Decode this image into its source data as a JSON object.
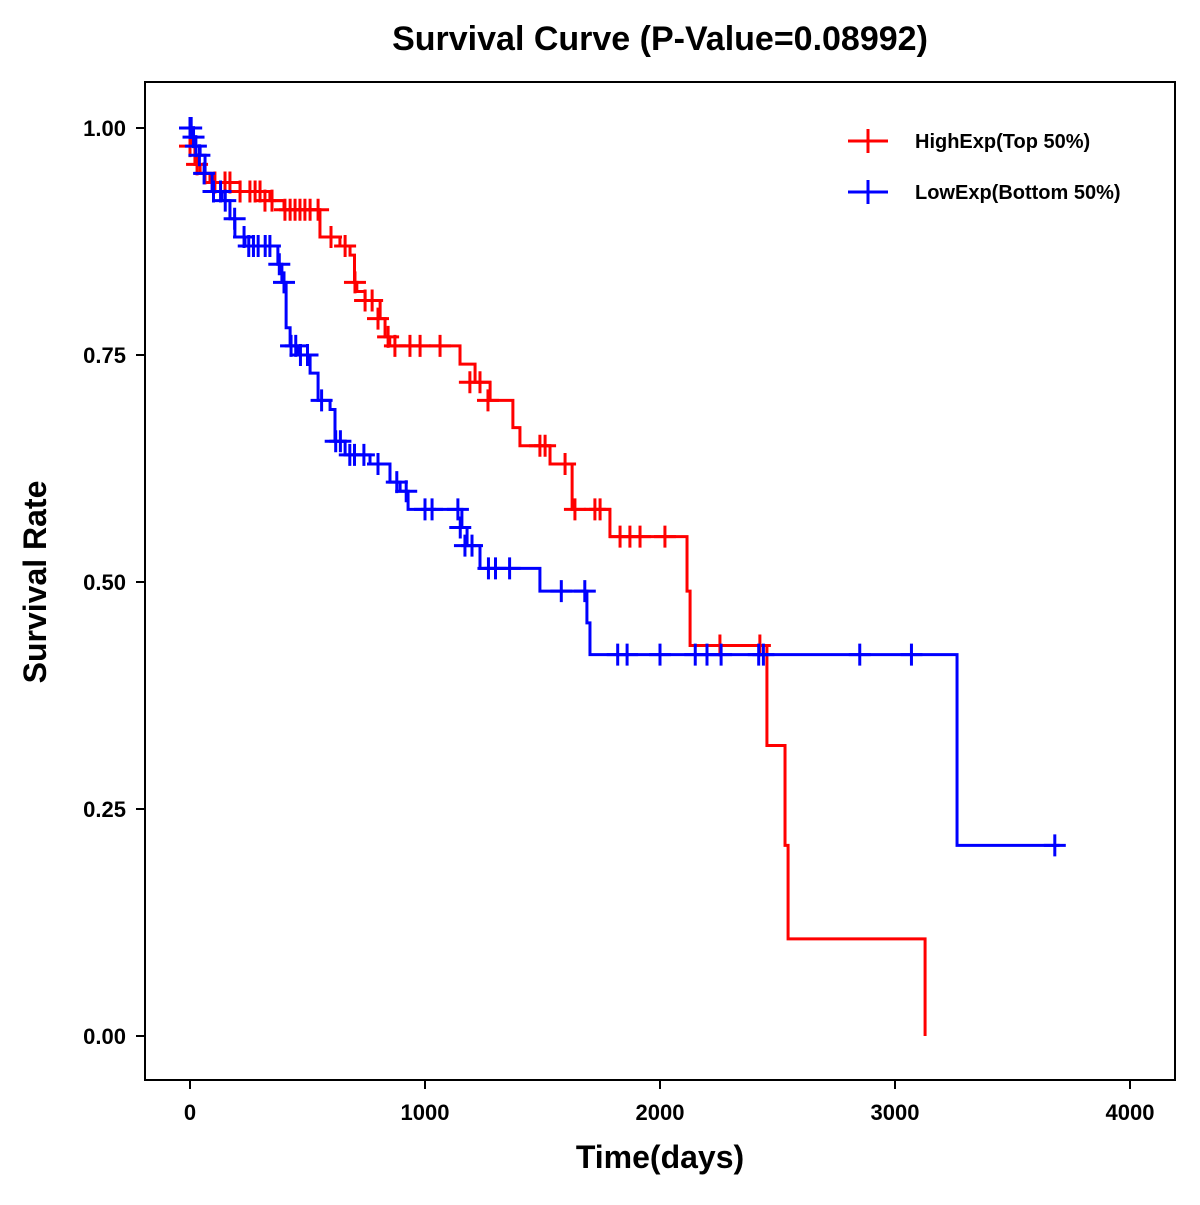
{
  "chart_data": {
    "type": "line",
    "subtype": "kaplan-meier step",
    "title": "Survival Curve (P-Value=0.08992)",
    "xlabel": "Time(days)",
    "ylabel": "Survival Rate",
    "xlim": [
      -200,
      4200
    ],
    "ylim": [
      -0.05,
      1.05
    ],
    "xticks": [
      0,
      1000,
      2000,
      3000,
      4000
    ],
    "xtick_labels": [
      "0",
      "1000",
      "2000",
      "3000",
      "4000"
    ],
    "yticks": [
      0,
      0.25,
      0.5,
      0.75,
      1.0
    ],
    "ytick_labels": [
      "0.00",
      "0.25",
      "0.50",
      "0.75",
      "1.00"
    ],
    "grid": false,
    "legend_position": "top-right",
    "series": [
      {
        "name": "HighExp(Top 50%)",
        "color": "#ff0000",
        "steps": [
          [
            0,
            1.0
          ],
          [
            5,
            0.98
          ],
          [
            21,
            0.96
          ],
          [
            43,
            0.95
          ],
          [
            85,
            0.94
          ],
          [
            213,
            0.93
          ],
          [
            340,
            0.92
          ],
          [
            400,
            0.91
          ],
          [
            553,
            0.88
          ],
          [
            638,
            0.87
          ],
          [
            681,
            0.86
          ],
          [
            700,
            0.83
          ],
          [
            710,
            0.82
          ],
          [
            745,
            0.81
          ],
          [
            809,
            0.79
          ],
          [
            830,
            0.77
          ],
          [
            850,
            0.76
          ],
          [
            1149,
            0.74
          ],
          [
            1213,
            0.72
          ],
          [
            1277,
            0.7
          ],
          [
            1374,
            0.67
          ],
          [
            1404,
            0.65
          ],
          [
            1532,
            0.63
          ],
          [
            1626,
            0.58
          ],
          [
            1787,
            0.55
          ],
          [
            2115,
            0.49
          ],
          [
            2128,
            0.43
          ],
          [
            2455,
            0.32
          ],
          [
            2532,
            0.21
          ],
          [
            2545,
            0.107
          ],
          [
            3128,
            0.0
          ]
        ],
        "censored": [
          [
            0,
            0.98
          ],
          [
            30,
            0.96
          ],
          [
            64,
            0.95
          ],
          [
            106,
            0.94
          ],
          [
            149,
            0.94
          ],
          [
            170,
            0.94
          ],
          [
            213,
            0.93
          ],
          [
            255,
            0.93
          ],
          [
            277,
            0.93
          ],
          [
            298,
            0.93
          ],
          [
            319,
            0.92
          ],
          [
            349,
            0.92
          ],
          [
            404,
            0.91
          ],
          [
            426,
            0.91
          ],
          [
            447,
            0.91
          ],
          [
            468,
            0.91
          ],
          [
            489,
            0.91
          ],
          [
            511,
            0.91
          ],
          [
            545,
            0.91
          ],
          [
            600,
            0.88
          ],
          [
            660,
            0.87
          ],
          [
            702,
            0.83
          ],
          [
            745,
            0.81
          ],
          [
            775,
            0.81
          ],
          [
            800,
            0.79
          ],
          [
            843,
            0.77
          ],
          [
            872,
            0.76
          ],
          [
            936,
            0.76
          ],
          [
            979,
            0.76
          ],
          [
            1064,
            0.76
          ],
          [
            1191,
            0.72
          ],
          [
            1234,
            0.72
          ],
          [
            1268,
            0.7
          ],
          [
            1489,
            0.65
          ],
          [
            1511,
            0.65
          ],
          [
            1596,
            0.63
          ],
          [
            1638,
            0.58
          ],
          [
            1723,
            0.58
          ],
          [
            1745,
            0.58
          ],
          [
            1830,
            0.55
          ],
          [
            1872,
            0.55
          ],
          [
            1915,
            0.55
          ],
          [
            2021,
            0.55
          ],
          [
            2255,
            0.43
          ],
          [
            2425,
            0.43
          ]
        ]
      },
      {
        "name": "LowExp(Bottom 50%)",
        "color": "#0000ff",
        "steps": [
          [
            0,
            1.0
          ],
          [
            9,
            0.99
          ],
          [
            21,
            0.98
          ],
          [
            43,
            0.97
          ],
          [
            64,
            0.95
          ],
          [
            94,
            0.93
          ],
          [
            136,
            0.92
          ],
          [
            170,
            0.9
          ],
          [
            191,
            0.88
          ],
          [
            234,
            0.87
          ],
          [
            374,
            0.85
          ],
          [
            391,
            0.83
          ],
          [
            409,
            0.78
          ],
          [
            426,
            0.76
          ],
          [
            460,
            0.75
          ],
          [
            511,
            0.73
          ],
          [
            545,
            0.7
          ],
          [
            596,
            0.69
          ],
          [
            617,
            0.655
          ],
          [
            660,
            0.64
          ],
          [
            766,
            0.63
          ],
          [
            851,
            0.61
          ],
          [
            894,
            0.6
          ],
          [
            928,
            0.58
          ],
          [
            1157,
            0.56
          ],
          [
            1179,
            0.54
          ],
          [
            1234,
            0.515
          ],
          [
            1489,
            0.49
          ],
          [
            1689,
            0.455
          ],
          [
            1702,
            0.42
          ],
          [
            3264,
            0.21
          ]
        ],
        "end_time": 3700,
        "censored": [
          [
            0,
            1.0
          ],
          [
            5,
            1.0
          ],
          [
            15,
            0.99
          ],
          [
            25,
            0.98
          ],
          [
            40,
            0.97
          ],
          [
            60,
            0.95
          ],
          [
            100,
            0.93
          ],
          [
            130,
            0.93
          ],
          [
            150,
            0.92
          ],
          [
            190,
            0.9
          ],
          [
            230,
            0.88
          ],
          [
            250,
            0.87
          ],
          [
            270,
            0.87
          ],
          [
            290,
            0.87
          ],
          [
            320,
            0.87
          ],
          [
            340,
            0.87
          ],
          [
            380,
            0.85
          ],
          [
            400,
            0.83
          ],
          [
            430,
            0.76
          ],
          [
            450,
            0.76
          ],
          [
            470,
            0.75
          ],
          [
            500,
            0.75
          ],
          [
            560,
            0.7
          ],
          [
            620,
            0.655
          ],
          [
            640,
            0.655
          ],
          [
            680,
            0.64
          ],
          [
            700,
            0.64
          ],
          [
            740,
            0.64
          ],
          [
            800,
            0.63
          ],
          [
            880,
            0.61
          ],
          [
            920,
            0.6
          ],
          [
            1000,
            0.58
          ],
          [
            1030,
            0.58
          ],
          [
            1140,
            0.58
          ],
          [
            1150,
            0.56
          ],
          [
            1170,
            0.54
          ],
          [
            1200,
            0.54
          ],
          [
            1270,
            0.515
          ],
          [
            1300,
            0.515
          ],
          [
            1360,
            0.515
          ],
          [
            1580,
            0.49
          ],
          [
            1680,
            0.49
          ],
          [
            1820,
            0.42
          ],
          [
            1860,
            0.42
          ],
          [
            2000,
            0.42
          ],
          [
            2150,
            0.42
          ],
          [
            2200,
            0.42
          ],
          [
            2260,
            0.42
          ],
          [
            2420,
            0.42
          ],
          [
            2440,
            0.42
          ],
          [
            2850,
            0.42
          ],
          [
            3070,
            0.42
          ],
          [
            3680,
            0.21
          ]
        ]
      }
    ]
  }
}
